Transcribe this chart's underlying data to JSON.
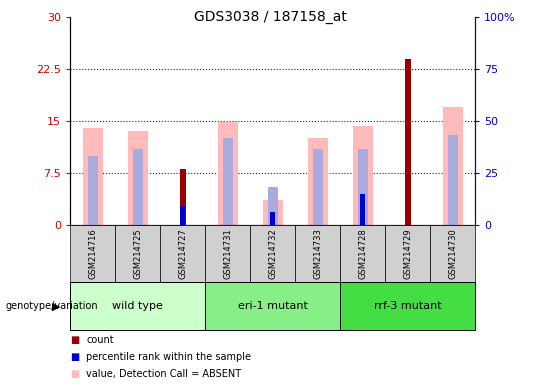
{
  "title": "GDS3038 / 187158_at",
  "samples": [
    "GSM214716",
    "GSM214725",
    "GSM214727",
    "GSM214731",
    "GSM214732",
    "GSM214733",
    "GSM214728",
    "GSM214729",
    "GSM214730"
  ],
  "groups": [
    {
      "label": "wild type",
      "start": 0,
      "end": 3,
      "color": "#ccffcc"
    },
    {
      "label": "eri-1 mutant",
      "start": 3,
      "end": 6,
      "color": "#88ee88"
    },
    {
      "label": "rrf-3 mutant",
      "start": 6,
      "end": 9,
      "color": "#44dd44"
    }
  ],
  "count_values": [
    0,
    0,
    8,
    0,
    0,
    0,
    0,
    24,
    0
  ],
  "percentile_values": [
    0,
    0,
    9,
    0,
    6,
    0,
    15,
    0,
    0
  ],
  "value_absent": [
    14,
    13.5,
    0,
    14.8,
    3.5,
    12.5,
    14.3,
    0,
    17
  ],
  "rank_absent": [
    10,
    11,
    0,
    12.5,
    5.5,
    11,
    11,
    0,
    13
  ],
  "ylim_left": [
    0,
    30
  ],
  "ylim_right": [
    0,
    100
  ],
  "yticks_left": [
    0,
    7.5,
    15,
    22.5,
    30
  ],
  "yticks_right": [
    0,
    25,
    50,
    75,
    100
  ],
  "ytick_labels_left": [
    "0",
    "7.5",
    "15",
    "22.5",
    "30"
  ],
  "ytick_labels_right": [
    "0",
    "25",
    "50",
    "75",
    "100%"
  ],
  "count_color": "#990000",
  "percentile_color": "#0000cc",
  "value_absent_color": "#ffbbbb",
  "rank_absent_color": "#aaaadd",
  "plot_bg": "#ffffff",
  "grid_color": "#222222",
  "tick_label_color_left": "#cc0000",
  "tick_label_color_right": "#0000cc",
  "figure_bg": "#ffffff"
}
